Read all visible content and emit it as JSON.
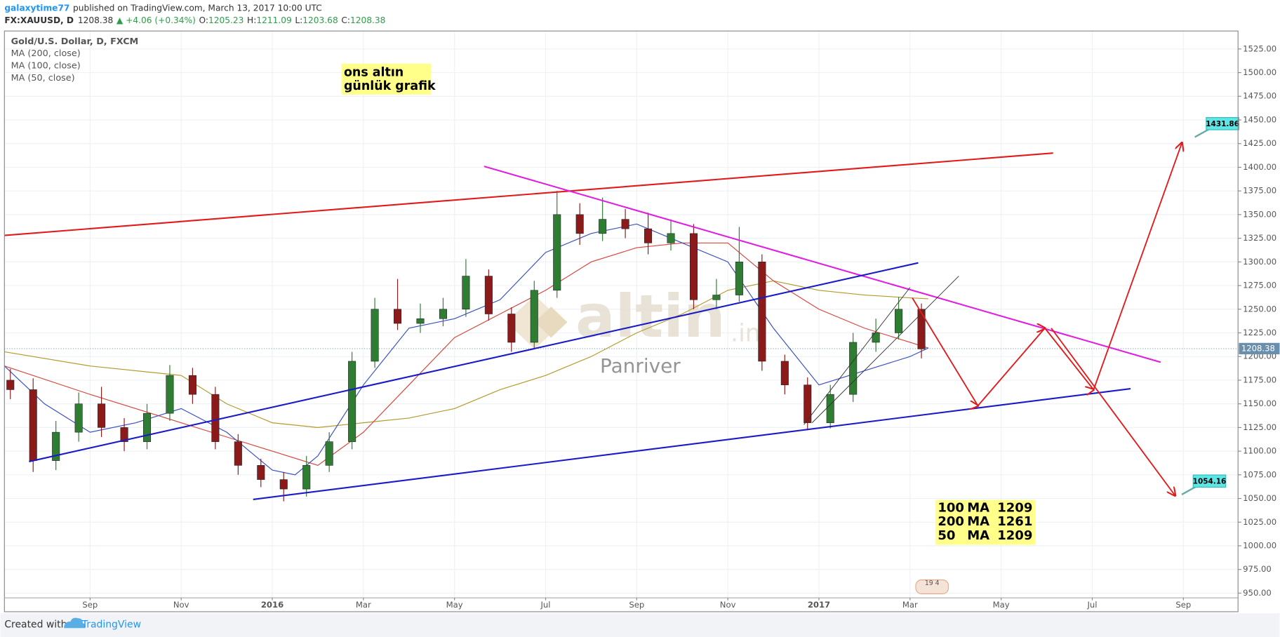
{
  "header": {
    "author": "galaxytime77",
    "published": "published on TradingView.com, March 13, 2017 10:00 UTC",
    "symbol": "FX:XAUUSD, D",
    "price": "1208.38",
    "change": "▲ +4.06 (+0.34%)",
    "ohlc": [
      {
        "label": "O:",
        "value": "1205.23"
      },
      {
        "label": "H:",
        "value": "1211.09"
      },
      {
        "label": "L:",
        "value": "1203.68"
      },
      {
        "label": "C:",
        "value": "1208.38"
      }
    ]
  },
  "chart_data": {
    "type": "candlestick",
    "title": "Gold/U.S. Dollar, D, FXCM",
    "up_color": "#2e7d32",
    "down_color": "#8b1a1a",
    "grid": true,
    "xlim": [
      0.12,
      27.2
    ],
    "ylim": [
      945,
      1544
    ],
    "xticks": [
      {
        "value": 2,
        "label": "Sep"
      },
      {
        "value": 4,
        "label": "Nov"
      },
      {
        "value": 6,
        "label": "2016"
      },
      {
        "value": 8,
        "label": "Mar"
      },
      {
        "value": 10,
        "label": "May"
      },
      {
        "value": 12,
        "label": "Jul"
      },
      {
        "value": 14,
        "label": "Sep"
      },
      {
        "value": 16,
        "label": "Nov"
      },
      {
        "value": 18,
        "label": "2017"
      },
      {
        "value": 20,
        "label": "Mar"
      },
      {
        "value": 22,
        "label": "May"
      },
      {
        "value": 24,
        "label": "Jul"
      },
      {
        "value": 26,
        "label": "Sep"
      }
    ],
    "yticks": [
      {
        "value": 950,
        "label": "950.00"
      },
      {
        "value": 975,
        "label": "975.00"
      },
      {
        "value": 1000,
        "label": "1000.00"
      },
      {
        "value": 1025,
        "label": "1025.00"
      },
      {
        "value": 1050,
        "label": "1050.00"
      },
      {
        "value": 1075,
        "label": "1075.00"
      },
      {
        "value": 1100,
        "label": "1100.00"
      },
      {
        "value": 1125,
        "label": "1125.00"
      },
      {
        "value": 1150,
        "label": "1150.00"
      },
      {
        "value": 1175,
        "label": "1175.00"
      },
      {
        "value": 1200,
        "label": "1200.00"
      },
      {
        "value": 1225,
        "label": "1225.00"
      },
      {
        "value": 1250,
        "label": "1250.00"
      },
      {
        "value": 1275,
        "label": "1275.00"
      },
      {
        "value": 1300,
        "label": "1300.00"
      },
      {
        "value": 1325,
        "label": "1325.00"
      },
      {
        "value": 1350,
        "label": "1350.00"
      },
      {
        "value": 1375,
        "label": "1375.00"
      },
      {
        "value": 1400,
        "label": "1400.00"
      },
      {
        "value": 1425,
        "label": "1425.00"
      },
      {
        "value": 1450,
        "label": "1450.00"
      },
      {
        "value": 1475,
        "label": "1475.00"
      },
      {
        "value": 1500,
        "label": "1500.00"
      },
      {
        "value": 1525,
        "label": "1525.00"
      }
    ],
    "last_price": 1208.38,
    "candles": {
      "x": [
        0.25,
        0.75,
        1.25,
        1.75,
        2.25,
        2.75,
        3.25,
        3.75,
        4.25,
        4.75,
        5.25,
        5.75,
        6.25,
        6.75,
        7.25,
        7.75,
        8.25,
        8.75,
        9.25,
        9.75,
        10.25,
        10.75,
        11.25,
        11.75,
        12.25,
        12.75,
        13.25,
        13.75,
        14.25,
        14.75,
        15.25,
        15.75,
        16.25,
        16.75,
        17.25,
        17.75,
        18.25,
        18.75,
        19.25,
        19.75,
        20.25
      ],
      "open": [
        1175,
        1165,
        1090,
        1120,
        1150,
        1125,
        1110,
        1140,
        1180,
        1160,
        1110,
        1085,
        1070,
        1060,
        1085,
        1110,
        1195,
        1250,
        1235,
        1240,
        1250,
        1285,
        1245,
        1215,
        1270,
        1350,
        1330,
        1345,
        1335,
        1320,
        1330,
        1260,
        1265,
        1300,
        1195,
        1170,
        1130,
        1160,
        1215,
        1225,
        1250
      ],
      "high": [
        1187,
        1177,
        1132,
        1162,
        1168,
        1135,
        1150,
        1191,
        1188,
        1168,
        1118,
        1092,
        1078,
        1095,
        1120,
        1205,
        1262,
        1282,
        1256,
        1262,
        1303,
        1292,
        1252,
        1280,
        1375,
        1362,
        1368,
        1356,
        1352,
        1345,
        1340,
        1282,
        1337,
        1308,
        1202,
        1178,
        1170,
        1225,
        1240,
        1263,
        1256
      ],
      "low": [
        1155,
        1078,
        1080,
        1110,
        1115,
        1100,
        1102,
        1132,
        1150,
        1102,
        1075,
        1062,
        1047,
        1052,
        1078,
        1102,
        1188,
        1228,
        1225,
        1232,
        1242,
        1238,
        1205,
        1208,
        1262,
        1318,
        1322,
        1325,
        1308,
        1312,
        1250,
        1250,
        1258,
        1185,
        1160,
        1122,
        1124,
        1152,
        1205,
        1218,
        1198
      ],
      "close": [
        1165,
        1090,
        1120,
        1150,
        1125,
        1110,
        1140,
        1180,
        1160,
        1110,
        1085,
        1070,
        1060,
        1085,
        1110,
        1195,
        1250,
        1235,
        1240,
        1250,
        1285,
        1245,
        1215,
        1270,
        1350,
        1330,
        1345,
        1335,
        1320,
        1330,
        1260,
        1265,
        1300,
        1195,
        1170,
        1130,
        1160,
        1215,
        1225,
        1250,
        1208
      ]
    },
    "ma": [
      {
        "name": "MA (200, close)",
        "color": "#b39a2a",
        "x": [
          0.12,
          2,
          4,
          5,
          6,
          7,
          8,
          9,
          10,
          11,
          12,
          13,
          14,
          15,
          16,
          17,
          18,
          19,
          20,
          20.4
        ],
        "values": [
          1205,
          1190,
          1180,
          1150,
          1130,
          1125,
          1130,
          1135,
          1145,
          1165,
          1180,
          1200,
          1225,
          1245,
          1270,
          1280,
          1270,
          1265,
          1262,
          1261
        ]
      },
      {
        "name": "MA (100, close)",
        "color": "#d9453d",
        "x": [
          0.12,
          2,
          4,
          5,
          6,
          7,
          8,
          9,
          10,
          11,
          12,
          13,
          14,
          15,
          16,
          17,
          18,
          19,
          20,
          20.4
        ],
        "values": [
          1190,
          1160,
          1130,
          1115,
          1100,
          1085,
          1120,
          1170,
          1220,
          1245,
          1270,
          1300,
          1315,
          1320,
          1320,
          1280,
          1250,
          1230,
          1215,
          1209
        ]
      },
      {
        "name": "MA (50, close)",
        "color": "#3a4fc4",
        "x": [
          0.12,
          1,
          2,
          3,
          4,
          5,
          6,
          6.5,
          7,
          8,
          9,
          10,
          11,
          12,
          13,
          14,
          15,
          16,
          17,
          18,
          19,
          20,
          20.4
        ],
        "values": [
          1190,
          1150,
          1120,
          1130,
          1145,
          1120,
          1080,
          1075,
          1095,
          1170,
          1230,
          1240,
          1260,
          1310,
          1330,
          1340,
          1320,
          1300,
          1230,
          1170,
          1185,
          1200,
          1209
        ]
      }
    ],
    "drawings": [
      {
        "color": "#e01b1b",
        "x": [
          0.12,
          23.14
        ],
        "y": [
          1328,
          1415
        ]
      },
      {
        "color": "#e020e0",
        "x": [
          10.65,
          25.5
        ],
        "y": [
          1401,
          1194
        ]
      },
      {
        "color": "#1a1ac8",
        "x": [
          0.66,
          20.18
        ],
        "y": [
          1089,
          1299
        ]
      },
      {
        "color": "#1a1ac8",
        "x": [
          5.58,
          24.84
        ],
        "y": [
          1049,
          1166
        ]
      },
      {
        "color": "#333333",
        "x": [
          17.67,
          20.0
        ],
        "y": [
          1128,
          1273
        ]
      },
      {
        "color": "#333333",
        "x": [
          17.85,
          21.07
        ],
        "y": [
          1130,
          1285
        ]
      },
      {
        "color": "#e01b1b",
        "arrow": true,
        "x": [
          20.05,
          21.49,
          22.96,
          24.03,
          25.97
        ],
        "y": [
          1262,
          1148,
          1230,
          1165,
          1426
        ]
      },
      {
        "color": "#e01b1b",
        "arrow": true,
        "x": [
          23.1,
          25.82
        ],
        "y": [
          1230,
          1053
        ]
      }
    ],
    "callouts": [
      1431.86,
      1054.16
    ],
    "note": [
      "ons altın",
      "günlük grafik"
    ],
    "ma_table": [
      [
        "100",
        "MA",
        "1209"
      ],
      [
        "200",
        "MA",
        "1261"
      ],
      [
        "50",
        "MA",
        "1209"
      ]
    ],
    "watermark": {
      "brand": "altin",
      "suffix": ".in",
      "sub": "Panriver"
    },
    "badge": "19 4"
  },
  "footer": {
    "created": "Created with",
    "brand": "TradingView"
  }
}
